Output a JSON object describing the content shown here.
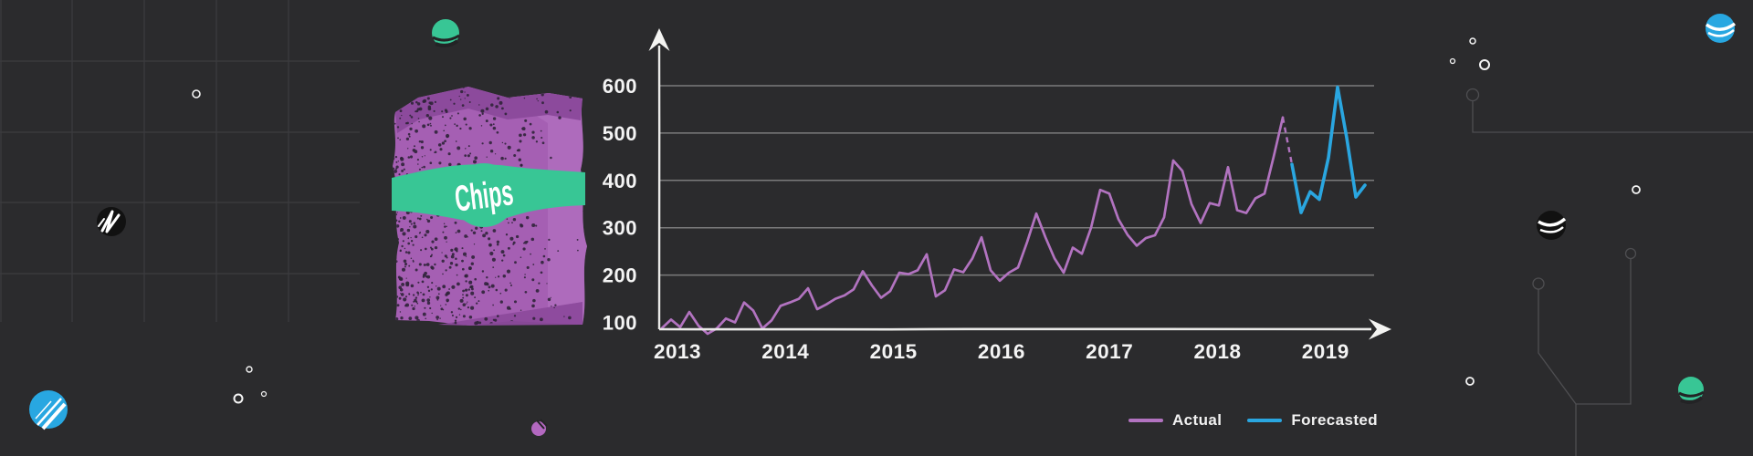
{
  "page": {
    "background": "#2b2b2d"
  },
  "chart_data": {
    "type": "line",
    "title": "",
    "x_tick_labels": [
      "2013",
      "2014",
      "2015",
      "2016",
      "2017",
      "2018",
      "2019"
    ],
    "x_interval": "monthly",
    "y_tick_labels": [
      100,
      200,
      300,
      400,
      500,
      600
    ],
    "ylim": [
      76,
      620
    ],
    "grid": "horizontal",
    "legend_position": "bottom-right",
    "transition_style": "dashed",
    "series": [
      {
        "name": "Actual",
        "color": "#b273c0",
        "line_style": "solid",
        "values": [
          88,
          106,
          90,
          122,
          93,
          76,
          87,
          108,
          100,
          142,
          125,
          87,
          104,
          135,
          142,
          150,
          172,
          128,
          138,
          150,
          157,
          170,
          208,
          178,
          152,
          166,
          205,
          202,
          210,
          244,
          155,
          168,
          212,
          206,
          235,
          280,
          210,
          188,
          205,
          216,
          270,
          330,
          280,
          235,
          205,
          258,
          245,
          300,
          380,
          372,
          318,
          285,
          262,
          278,
          284,
          322,
          442,
          420,
          350,
          310,
          352,
          347,
          428,
          337,
          331,
          362,
          372,
          450,
          533
        ]
      },
      {
        "name": "Forecasted",
        "color": "#2aa6e0",
        "line_style": "solid",
        "values": [
          434,
          332,
          376,
          360,
          448,
          597,
          490,
          365,
          390
        ]
      }
    ]
  },
  "legend": {
    "items": [
      {
        "label": "Actual",
        "color": "#b273c0"
      },
      {
        "label": "Forecasted",
        "color": "#2aa6e0"
      }
    ]
  },
  "illustration": {
    "chips_label": "Chips",
    "bag_color": "#a55fb3",
    "bag_shade": "#8c4a9c",
    "bag_highlight": "#bb7ac8",
    "band_color": "#38c695",
    "label_text_color": "#ffffff",
    "speckle_color": "#30243a"
  },
  "decor": {
    "planet_blue": "#28a7e1",
    "planet_teal": "#38c695",
    "planet_black": "#111111",
    "blob_purple": "#b368c0",
    "grid_line": "#404043",
    "circuit_line": "#4e4e51",
    "small_circle": "#ffffff",
    "axis_color": "#eaeae8",
    "gridline_color": "#909090"
  }
}
